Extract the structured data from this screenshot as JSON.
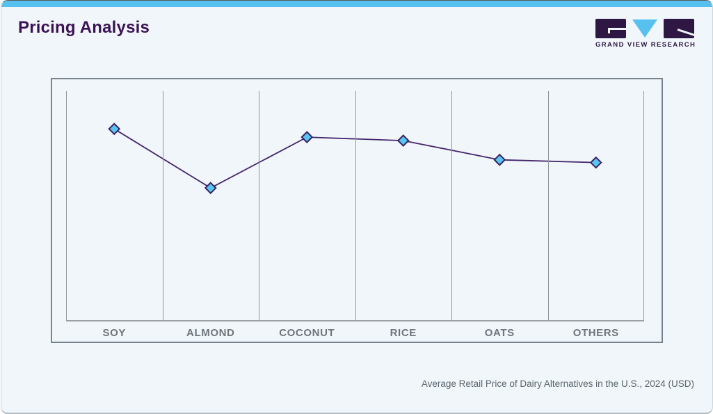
{
  "page": {
    "title": "Pricing Analysis",
    "caption": "Average Retail Price of Dairy Alternatives in the U.S., 2024 (USD)"
  },
  "logo": {
    "wordmark": "GRAND VIEW RESEARCH"
  },
  "colors": {
    "accent_blue": "#56c1ee",
    "brand_purple": "#2e1843",
    "title_purple": "#3b1253",
    "line_purple": "#45266a",
    "marker_fill": "#58c5f1",
    "marker_stroke": "#3a2163",
    "gridline_gray": "#8d969c",
    "label_gray": "#6e757c",
    "card_background": "#f0f6fa"
  },
  "chart_data": {
    "type": "line",
    "title": "Average Retail Price of Dairy Alternatives in the U.S., 2024 (USD)",
    "categories": [
      "SOY",
      "ALMOND",
      "COCONUT",
      "RICE",
      "OATS",
      "OTHERS"
    ],
    "series": [
      {
        "name": "Average Retail Price",
        "values_normalized": [
          0.835,
          0.577,
          0.799,
          0.784,
          0.7,
          0.688
        ]
      }
    ],
    "xlabel": "",
    "ylabel": "",
    "y_axis_labels_visible": false,
    "y_range_normalized": [
      0,
      1
    ],
    "marker": "diamond",
    "grid": "vertical-only",
    "legend": "none",
    "note": "No numeric y-axis shown in source; values are marker heights as fraction of plot height above the baseline."
  }
}
